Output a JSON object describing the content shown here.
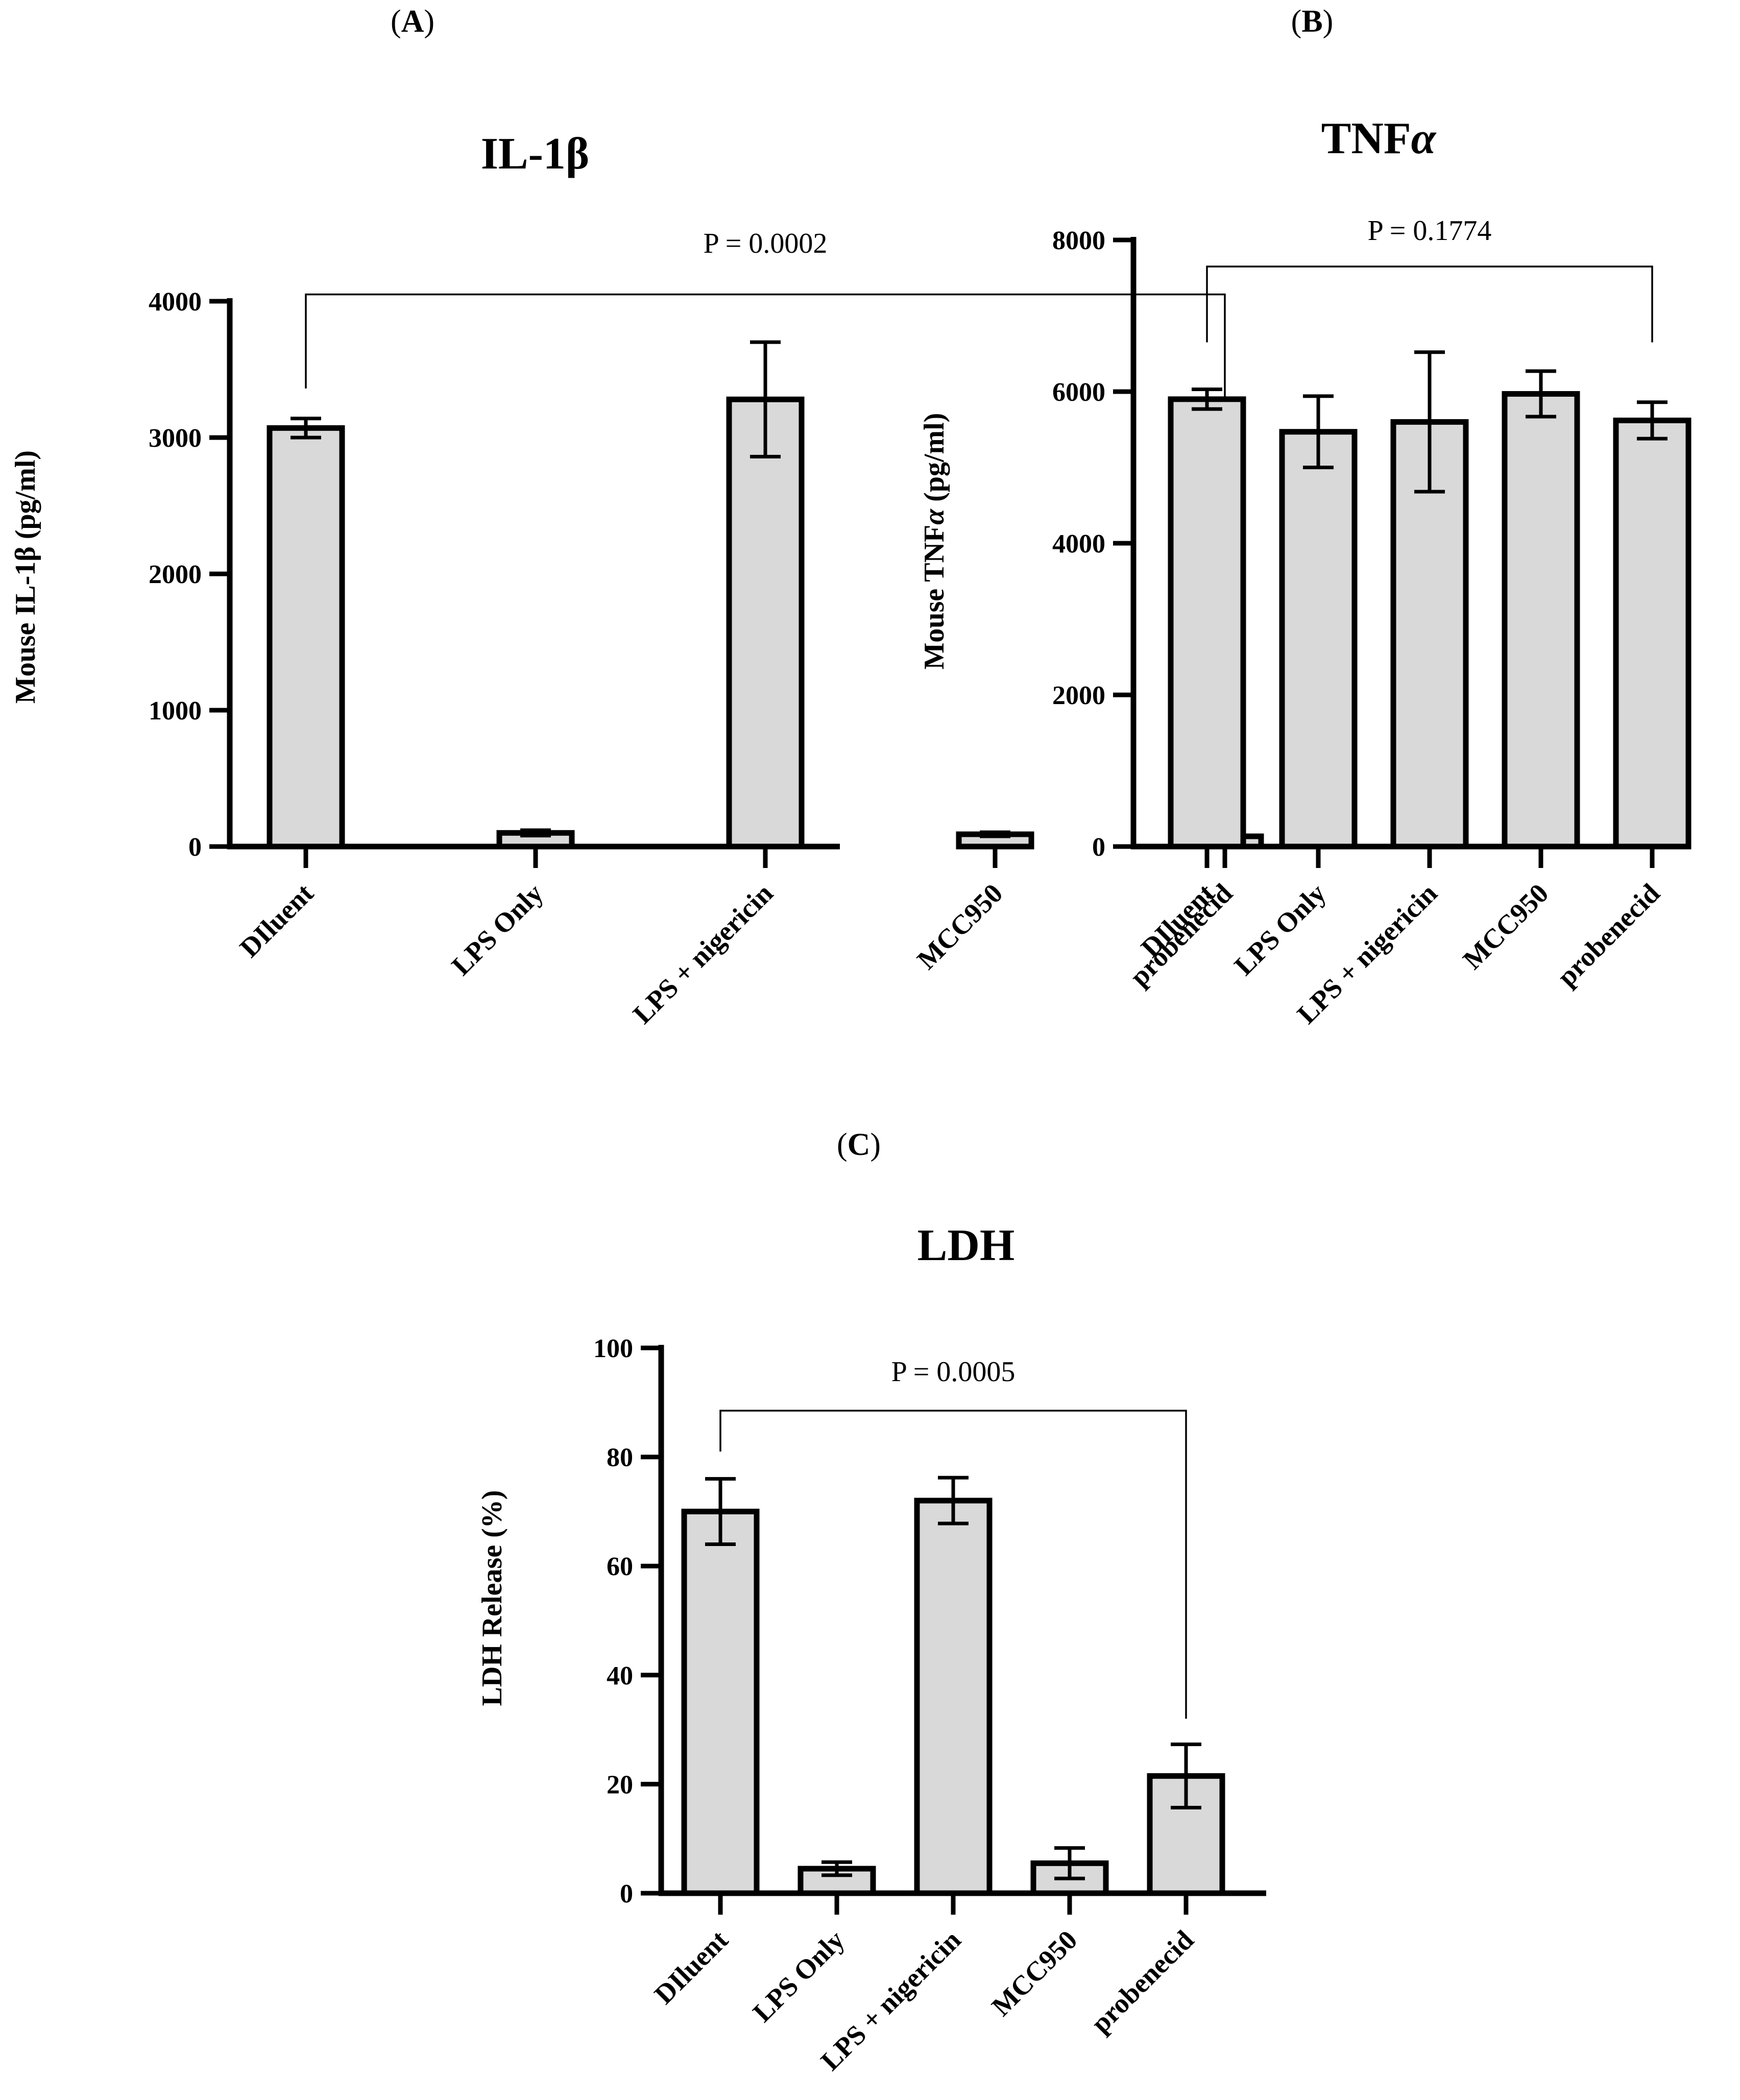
{
  "panels": [
    {
      "panel_label": "A",
      "chart_data": {
        "type": "bar",
        "title": "IL-1β",
        "ylabel": "Mouse IL-1β (pg/ml)",
        "xlabel": "",
        "categories": [
          "DIluent",
          "LPS Only",
          "LPS + nigericin",
          "MCC950",
          "probenecid"
        ],
        "values": [
          3070,
          100,
          3280,
          90,
          75
        ],
        "errors": [
          70,
          20,
          420,
          15,
          15
        ],
        "ylim": [
          0,
          4000
        ],
        "yticks": [
          0,
          1000,
          2000,
          3000,
          4000
        ],
        "grid": false,
        "comparison": {
          "from": 0,
          "to": 4,
          "label": "P = 0.0002",
          "level": 4050,
          "left_end": 3360,
          "right_end": 330
        }
      }
    },
    {
      "panel_label": "B",
      "chart_data": {
        "type": "bar",
        "title": "TNF",
        "title_suffix": "α",
        "ylabel": "Mouse TNF",
        "ylabel_suffix": "α",
        "ylabel_tail": " (pg/ml)",
        "xlabel": "",
        "categories": [
          "DIluent",
          "LPS Only",
          "LPS + nigericin",
          "MCC950",
          "probenecid"
        ],
        "values": [
          5900,
          5470,
          5600,
          5970,
          5620
        ],
        "errors": [
          130,
          470,
          920,
          300,
          240
        ],
        "ylim": [
          0,
          8000
        ],
        "yticks": [
          0,
          2000,
          4000,
          6000,
          8000
        ],
        "grid": false,
        "comparison": {
          "from": 0,
          "to": 4,
          "label": "P = 0.1774",
          "level": 7650,
          "left_end": 6650,
          "right_end": 6650
        }
      }
    },
    {
      "panel_label": "C",
      "chart_data": {
        "type": "bar",
        "title": "LDH",
        "ylabel": "LDH Release (%)",
        "xlabel": "",
        "categories": [
          "DIluent",
          "LPS Only",
          "LPS + nigericin",
          "MCC950",
          "probenecid"
        ],
        "values": [
          70,
          4.5,
          72,
          5.5,
          21.5
        ],
        "errors": [
          6,
          1.2,
          4.2,
          2.8,
          5.8
        ],
        "ylim": [
          0,
          100
        ],
        "yticks": [
          0,
          20,
          40,
          60,
          80,
          100
        ],
        "grid": false,
        "comparison": {
          "from": 0,
          "to": 4,
          "label": "P = 0.0005",
          "level": 88.5,
          "left_end": 81,
          "right_end": 32
        }
      }
    }
  ]
}
